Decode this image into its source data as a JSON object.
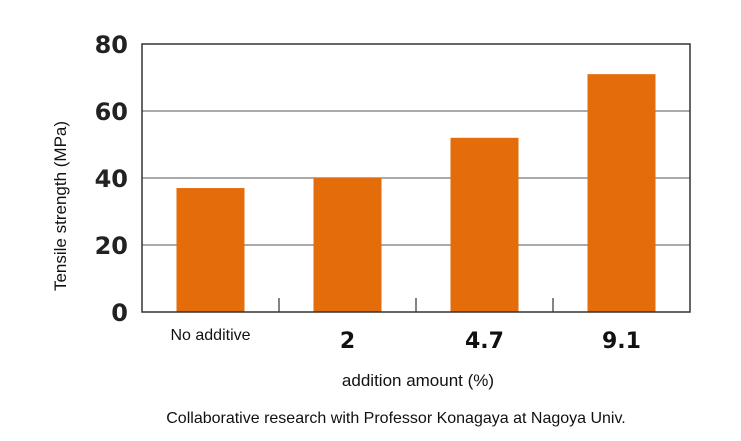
{
  "chart_data": {
    "type": "bar",
    "categories": [
      "No additive",
      "2",
      "4.7",
      "9.1"
    ],
    "values": [
      37,
      40,
      52,
      71
    ],
    "xlabel": "addition amount (%)",
    "ylabel": "Tensile strength (MPa)",
    "ylim": [
      0,
      80
    ],
    "yticks": [
      "0",
      "20",
      "40",
      "60",
      "80"
    ],
    "grid": true,
    "bar_color": "#e46c0a",
    "note": "Collaborative research with Professor Konagaya at Nagoya Univ."
  }
}
